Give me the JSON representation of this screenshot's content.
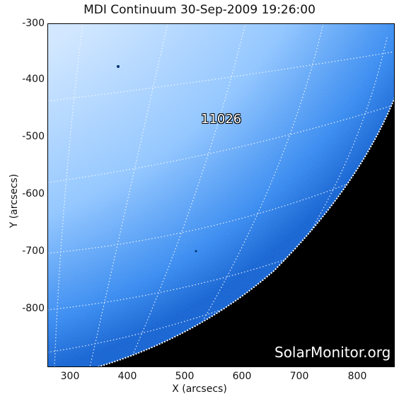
{
  "title": "MDI Continuum 30-Sep-2009 19:26:00",
  "axes": {
    "xlabel": "X (arcsecs)",
    "ylabel": "Y (arcsecs)",
    "x_ticks": [
      "300",
      "400",
      "500",
      "600",
      "700",
      "800"
    ],
    "y_ticks": [
      "-300",
      "-400",
      "-500",
      "-600",
      "-700",
      "-800"
    ]
  },
  "region_label": "11026",
  "watermark": "SolarMonitor.org",
  "colors": {
    "disk_light": "#b9dcff",
    "disk_dark": "#0a5cd0",
    "space": "#000000",
    "grid": "#ffffff"
  }
}
